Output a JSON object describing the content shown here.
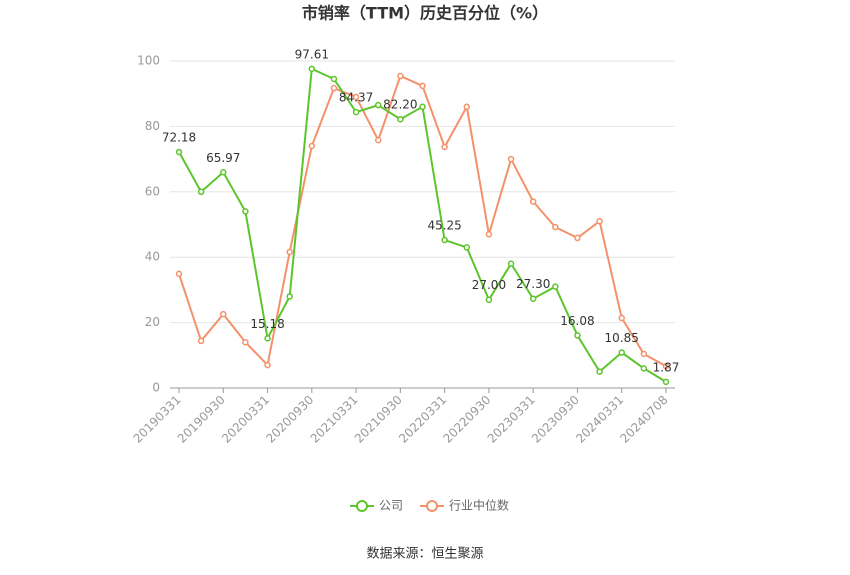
{
  "chart_data": {
    "type": "line",
    "title": "市销率（TTM）历史百分位（%）",
    "categories": [
      "20190331",
      null,
      "20190930",
      null,
      "20200331",
      null,
      "20200930",
      null,
      "20210331",
      null,
      "20210930",
      null,
      "20220331",
      null,
      "20220930",
      null,
      "20230331",
      null,
      "20230930",
      null,
      "20240331",
      null,
      "20240708"
    ],
    "series": [
      {
        "name": "公司",
        "color": "#5cc52b",
        "values": [
          72.18,
          60,
          65.97,
          54,
          15.18,
          28,
          97.61,
          94.5,
          84.37,
          86.5,
          82.2,
          86,
          45.25,
          43,
          27.0,
          38,
          27.3,
          31,
          16.08,
          5,
          10.85,
          6,
          1.87
        ],
        "value_labels": [
          "72.18",
          null,
          "65.97",
          null,
          "15.18",
          null,
          "97.61",
          null,
          "84.37",
          null,
          "82.20",
          null,
          "45.25",
          null,
          "27.00",
          null,
          "27.30",
          null,
          "16.08",
          null,
          "10.85",
          null,
          "1.87"
        ]
      },
      {
        "name": "行业中位数",
        "color": "#f5916a",
        "values": [
          34.9,
          14.4,
          22.6,
          14,
          7,
          41.6,
          74,
          91.7,
          89,
          75.8,
          95.4,
          92.4,
          73.7,
          86,
          47,
          70,
          57,
          49.2,
          45.9,
          51,
          21.4,
          10.4,
          6.7
        ]
      }
    ],
    "ylim": [
      0,
      100
    ],
    "yticks": [
      0,
      20,
      40,
      60,
      80,
      100
    ],
    "grid": true,
    "source": "数据来源：恒生聚源"
  }
}
